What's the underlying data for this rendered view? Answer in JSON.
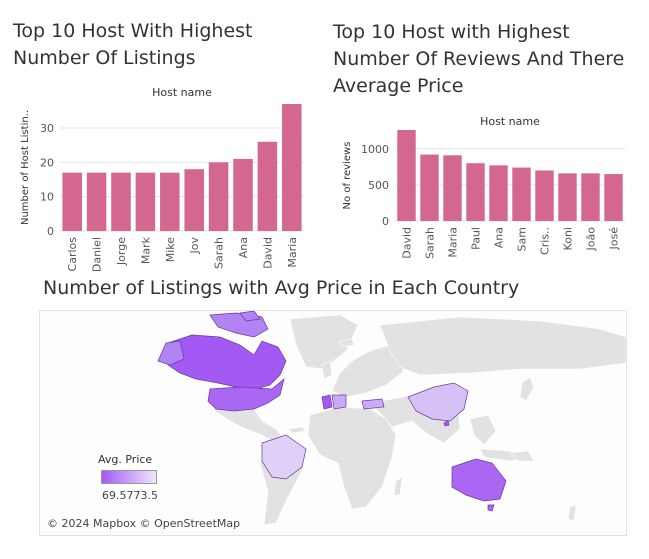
{
  "colors": {
    "bar": "#d4678f",
    "grid": "#e6e6e6",
    "axis_text": "#555555",
    "map_land": "#e2e2e2",
    "map_low": "#a35af5",
    "map_high": "#efe6fb"
  },
  "titles": {
    "listings": "Top 10 Host With Highest Number Of Listings",
    "reviews": "Top 10 Host with Highest Number Of Reviews And There Average Price",
    "map": "Number of Listings with Avg Price in Each Country"
  },
  "chart_data": [
    {
      "type": "bar",
      "title": "Top 10 Host With Highest Number Of Listings",
      "xlabel": "Host name",
      "ylabel": "Number of Host Listin..",
      "categories": [
        "Carlos",
        "Daniel",
        "Jorge",
        "Mark",
        "Mike",
        "Jov",
        "Sarah",
        "Ana",
        "David",
        "Maria"
      ],
      "values": [
        17,
        17,
        17,
        17,
        17,
        18,
        20,
        21,
        26,
        37
      ],
      "yticks": [
        0,
        10,
        20,
        30
      ],
      "ylim": [
        0,
        37
      ],
      "grid": true,
      "xlabel_position": "top"
    },
    {
      "type": "bar",
      "title": "Top 10 Host with Highest Number Of Reviews And There Average Price",
      "xlabel": "Host name",
      "ylabel": "No of reviews",
      "categories": [
        "David",
        "Sarah",
        "Maria",
        "Paul",
        "Ana",
        "Sam",
        "Cris..",
        "Koni",
        "João",
        "José"
      ],
      "values": [
        1260,
        920,
        910,
        800,
        770,
        740,
        700,
        660,
        660,
        650
      ],
      "yticks": [
        0,
        500,
        1000
      ],
      "ylim": [
        0,
        1260
      ],
      "grid": true,
      "xlabel_position": "top"
    }
  ],
  "map": {
    "legend_title": "Avg. Price",
    "legend_range": "69.5773.5",
    "attribution": "© 2024 Mapbox © OpenStreetMap",
    "highlighted_countries": [
      "Canada",
      "United States",
      "Brazil",
      "Portugal",
      "Spain",
      "Turkey",
      "China",
      "Hong Kong",
      "Australia"
    ]
  }
}
